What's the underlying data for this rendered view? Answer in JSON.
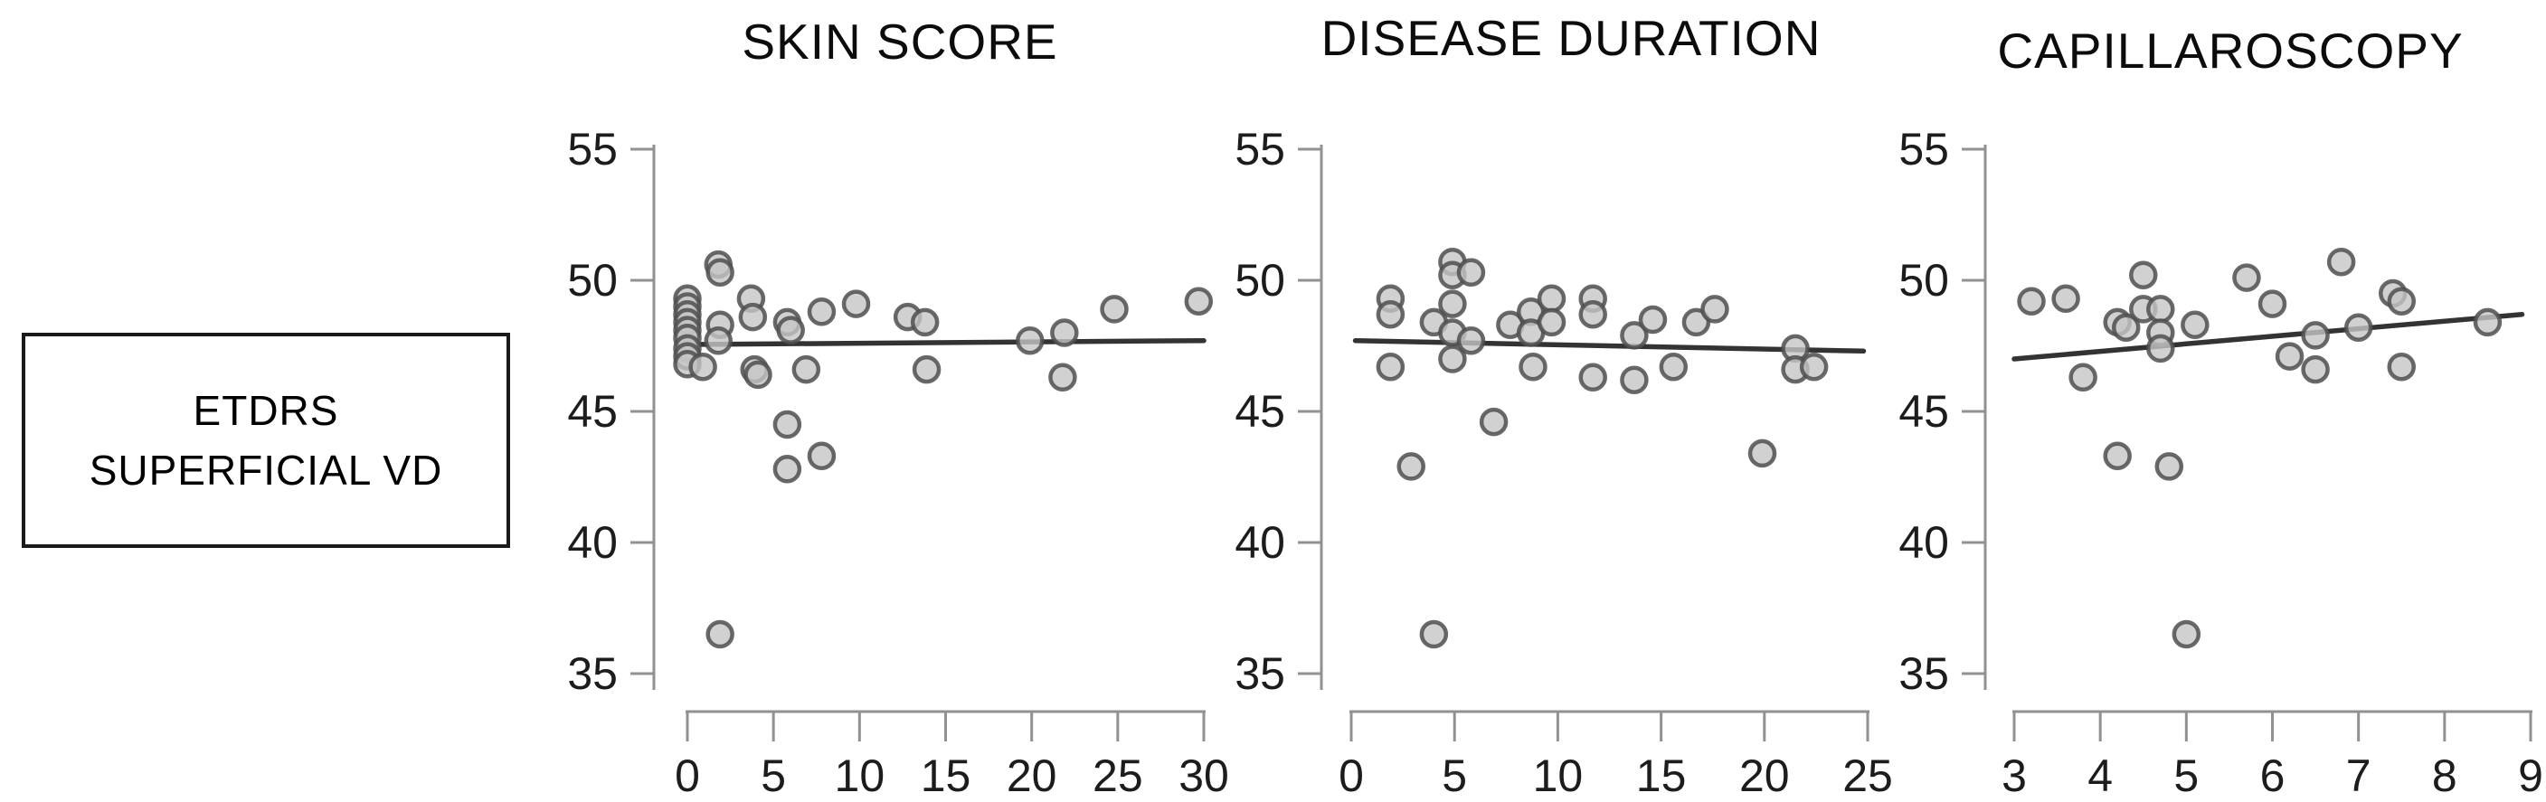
{
  "figure": {
    "row_label": {
      "line1": "ETDRS",
      "line2": "SUPERFICIAL VD"
    },
    "colors": {
      "background": "#ffffff",
      "marker_fill": "#c6c6c6",
      "marker_stroke": "#4f4f4f",
      "trend_line": "#333333",
      "axis_line": "#919191",
      "tick_label": "#1c1c1c",
      "title_text": "#0c0c0c",
      "box_border": "#1a1a1a"
    }
  },
  "chart_data": [
    {
      "type": "scatter",
      "title": "SKIN SCORE",
      "xlabel": "",
      "ylabel": "ETDRS SUPERFICIAL VD",
      "xlim": [
        0,
        30
      ],
      "ylim": [
        35,
        55
      ],
      "xticks": [
        0,
        5,
        10,
        15,
        20,
        25,
        30
      ],
      "yticks": [
        55,
        50,
        45,
        40,
        35
      ],
      "grid": false,
      "points": [
        [
          0,
          49.3
        ],
        [
          0,
          49.0
        ],
        [
          0,
          48.7
        ],
        [
          0,
          48.4
        ],
        [
          0,
          48.1
        ],
        [
          0,
          47.8
        ],
        [
          0,
          47.4
        ],
        [
          0,
          47.1
        ],
        [
          0,
          46.8
        ],
        [
          0.9,
          46.7
        ],
        [
          1.8,
          50.6
        ],
        [
          1.9,
          50.3
        ],
        [
          1.9,
          48.3
        ],
        [
          1.8,
          47.7
        ],
        [
          1.9,
          36.5
        ],
        [
          3.7,
          49.3
        ],
        [
          3.8,
          48.6
        ],
        [
          3.9,
          46.6
        ],
        [
          4.1,
          46.4
        ],
        [
          5.8,
          48.4
        ],
        [
          6.0,
          48.1
        ],
        [
          5.8,
          44.5
        ],
        [
          5.8,
          42.8
        ],
        [
          6.9,
          46.6
        ],
        [
          7.8,
          48.8
        ],
        [
          7.8,
          43.3
        ],
        [
          9.8,
          49.1
        ],
        [
          12.8,
          48.6
        ],
        [
          13.8,
          48.4
        ],
        [
          13.9,
          46.6
        ],
        [
          19.9,
          47.7
        ],
        [
          21.9,
          48.0
        ],
        [
          21.8,
          46.3
        ],
        [
          24.8,
          48.9
        ],
        [
          29.7,
          49.2
        ]
      ],
      "trend": {
        "x1": 0,
        "y1": 47.55,
        "x2": 30,
        "y2": 47.7
      }
    },
    {
      "type": "scatter",
      "title": "DISEASE DURATION",
      "xlabel": "",
      "ylabel": "ETDRS SUPERFICIAL VD",
      "xlim": [
        0,
        25
      ],
      "ylim": [
        35,
        55
      ],
      "xticks": [
        0,
        5,
        10,
        15,
        20,
        25
      ],
      "yticks": [
        55,
        50,
        45,
        40,
        35
      ],
      "grid": false,
      "points": [
        [
          1.9,
          49.3
        ],
        [
          1.9,
          48.7
        ],
        [
          1.9,
          46.7
        ],
        [
          2.9,
          42.9
        ],
        [
          4.0,
          48.4
        ],
        [
          4.0,
          36.5
        ],
        [
          4.9,
          50.7
        ],
        [
          4.9,
          50.2
        ],
        [
          4.9,
          49.1
        ],
        [
          4.9,
          48.0
        ],
        [
          4.9,
          47.0
        ],
        [
          5.8,
          50.3
        ],
        [
          5.8,
          47.7
        ],
        [
          6.9,
          44.6
        ],
        [
          7.7,
          48.3
        ],
        [
          8.7,
          48.8
        ],
        [
          8.7,
          48.0
        ],
        [
          8.8,
          46.7
        ],
        [
          9.7,
          49.3
        ],
        [
          9.7,
          48.4
        ],
        [
          11.7,
          49.3
        ],
        [
          11.7,
          48.7
        ],
        [
          11.7,
          46.3
        ],
        [
          13.7,
          47.9
        ],
        [
          13.7,
          46.2
        ],
        [
          14.6,
          48.5
        ],
        [
          15.6,
          46.7
        ],
        [
          16.7,
          48.4
        ],
        [
          17.6,
          48.9
        ],
        [
          19.9,
          43.4
        ],
        [
          21.5,
          47.4
        ],
        [
          21.5,
          46.6
        ],
        [
          22.4,
          46.7
        ]
      ],
      "trend": {
        "x1": 0.2,
        "y1": 47.7,
        "x2": 24.8,
        "y2": 47.3
      }
    },
    {
      "type": "scatter",
      "title": "CAPILLAROSCOPY",
      "xlabel": "",
      "ylabel": "ETDRS SUPERFICIAL VD",
      "xlim": [
        3,
        9
      ],
      "ylim": [
        35,
        55
      ],
      "xticks": [
        3,
        4,
        5,
        6,
        7,
        8,
        9
      ],
      "yticks": [
        55,
        50,
        45,
        40,
        35
      ],
      "grid": false,
      "points": [
        [
          3.2,
          49.2
        ],
        [
          3.6,
          49.3
        ],
        [
          3.8,
          46.3
        ],
        [
          4.2,
          48.4
        ],
        [
          4.3,
          48.2
        ],
        [
          4.2,
          43.3
        ],
        [
          4.5,
          50.2
        ],
        [
          4.5,
          48.9
        ],
        [
          4.7,
          48.9
        ],
        [
          4.7,
          48.0
        ],
        [
          4.7,
          47.4
        ],
        [
          4.8,
          42.9
        ],
        [
          5.0,
          36.5
        ],
        [
          5.1,
          48.3
        ],
        [
          5.7,
          50.1
        ],
        [
          6.0,
          49.1
        ],
        [
          6.2,
          47.1
        ],
        [
          6.5,
          47.9
        ],
        [
          6.5,
          46.6
        ],
        [
          6.8,
          50.7
        ],
        [
          7.0,
          48.2
        ],
        [
          7.4,
          49.5
        ],
        [
          7.5,
          49.2
        ],
        [
          7.5,
          46.7
        ],
        [
          8.5,
          48.4
        ]
      ],
      "trend": {
        "x1": 3.0,
        "y1": 47.0,
        "x2": 8.9,
        "y2": 48.7
      }
    }
  ]
}
